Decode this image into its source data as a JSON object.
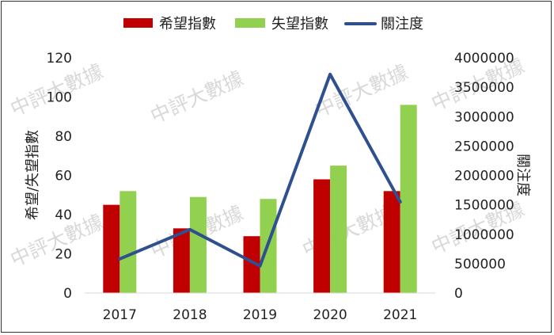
{
  "chart_data": {
    "type": "bar+line",
    "categories": [
      "2017",
      "2018",
      "2019",
      "2020",
      "2021"
    ],
    "series": [
      {
        "name": "希望指數",
        "type": "bar",
        "axis": "left",
        "color": "#c00000",
        "values": [
          45,
          33,
          29,
          58,
          52
        ]
      },
      {
        "name": "失望指數",
        "type": "bar",
        "axis": "left",
        "color": "#92d050",
        "values": [
          52,
          49,
          48,
          65,
          96
        ]
      },
      {
        "name": "關注度",
        "type": "line",
        "axis": "right",
        "color": "#2f4f8f",
        "values": [
          580000,
          1080000,
          460000,
          3720000,
          1550000
        ]
      }
    ],
    "left_axis": {
      "label": "希望/失望指數",
      "min": 0,
      "max": 120,
      "ticks": [
        "0",
        "20",
        "40",
        "60",
        "80",
        "100",
        "120"
      ]
    },
    "right_axis": {
      "label": "關注度",
      "min": 0,
      "max": 4000000,
      "ticks": [
        "0",
        "500000",
        "1000000",
        "1500000",
        "2000000",
        "2500000",
        "3000000",
        "3500000",
        "4000000"
      ]
    },
    "legend": {
      "position": "top",
      "items": [
        "希望指數",
        "失望指數",
        "關注度"
      ]
    },
    "grid": false
  },
  "watermark": {
    "text": "中評大數據"
  }
}
